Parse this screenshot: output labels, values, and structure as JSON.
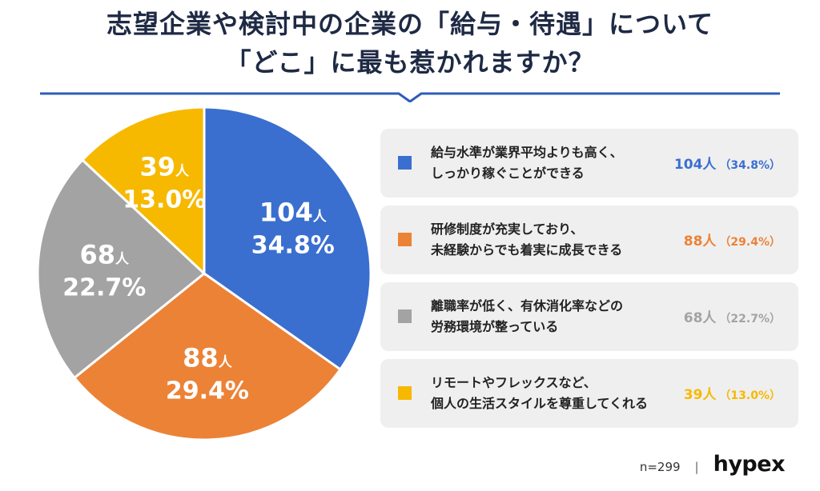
{
  "title": {
    "line1": "志望企業や検討中の企業の「給与・待遇」について",
    "line2": "「どこ」に最も惹かれますか？"
  },
  "chart_data": {
    "type": "pie",
    "unit": "人",
    "slices": [
      {
        "label": "給与水準が業界平均よりも高く、しっかり稼ぐことができる",
        "label_lines": [
          "給与水準が業界平均よりも高く、",
          "しっかり稼ぐことができる"
        ],
        "value": 104,
        "percent": "34.8%",
        "value_text": "104人",
        "percent_text": "（34.8%）",
        "color": "#3a6fd0"
      },
      {
        "label": "研修制度が充実しており、未経験からでも着実に成長できる",
        "label_lines": [
          "研修制度が充実しており、",
          "未経験からでも着実に成長できる"
        ],
        "value": 88,
        "percent": "29.4%",
        "value_text": "88人",
        "percent_text": "（29.4%）",
        "color": "#ec8236"
      },
      {
        "label": "離職率が低く、有休消化率などの労務環境が整っている",
        "label_lines": [
          "離職率が低く、有休消化率などの",
          "労務環境が整っている"
        ],
        "value": 68,
        "percent": "22.7%",
        "value_text": "68人",
        "percent_text": "（22.7%）",
        "color": "#a3a3a3"
      },
      {
        "label": "リモートやフレックスなど、個人の生活スタイルを尊重してくれる",
        "label_lines": [
          "リモートやフレックスなど、",
          "個人の生活スタイルを尊重してくれる"
        ],
        "value": 39,
        "percent": "13.0%",
        "value_text": "39人",
        "percent_text": "（13.0%）",
        "color": "#f6b900"
      }
    ]
  },
  "colors": {
    "title": "#1e2a44",
    "divider": "#2f5db8"
  },
  "footer": {
    "n": "n=299",
    "separator": "|",
    "brand": "hypex"
  }
}
